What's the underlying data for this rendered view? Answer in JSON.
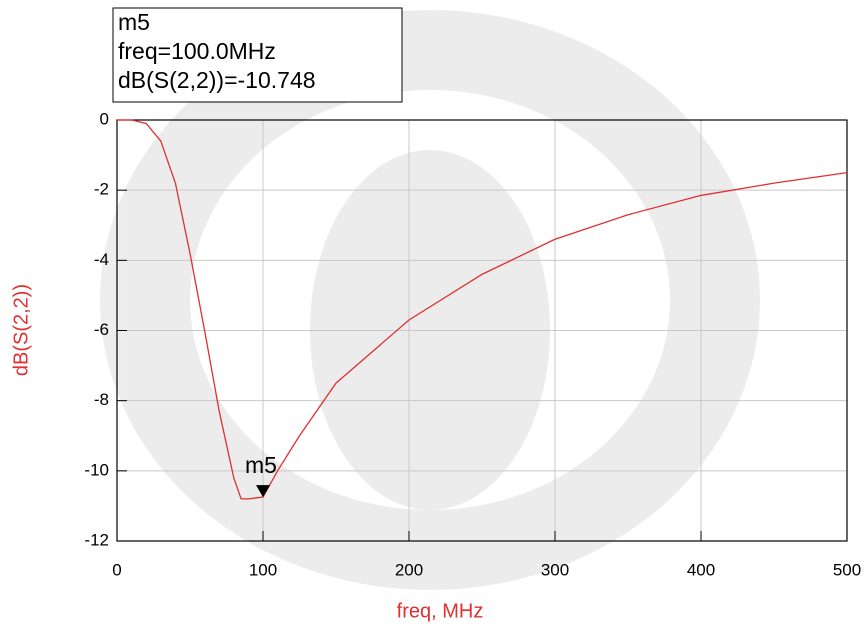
{
  "chart_data": {
    "type": "line",
    "x_label": "freq, MHz",
    "y_label": "dB(S(2,2))",
    "x": [
      0,
      10,
      20,
      30,
      40,
      50,
      60,
      70,
      80,
      85,
      90,
      100,
      110,
      125,
      150,
      200,
      250,
      300,
      350,
      400,
      450,
      500
    ],
    "series": [
      {
        "name": "dB(S(2,2))",
        "color": "#e03030",
        "values": [
          0,
          0,
          -0.1,
          -0.6,
          -1.8,
          -3.8,
          -6.0,
          -8.3,
          -10.2,
          -10.8,
          -10.8,
          -10.748,
          -10.0,
          -9.0,
          -7.5,
          -5.7,
          -4.4,
          -3.4,
          -2.7,
          -2.15,
          -1.8,
          -1.5
        ]
      }
    ],
    "xlim": [
      0,
      500
    ],
    "xticks": [
      0,
      100,
      200,
      300,
      400,
      500
    ],
    "ylim": [
      -12,
      0
    ],
    "yticks": [
      -12,
      -10,
      -8,
      -6,
      -4,
      -2,
      0
    ],
    "grid": true,
    "marker": {
      "name": "m5",
      "x": 100,
      "y": -10.748,
      "readout": [
        "m5",
        "freq=100.0MHz",
        "dB(S(2,2))=-10.748"
      ]
    }
  }
}
